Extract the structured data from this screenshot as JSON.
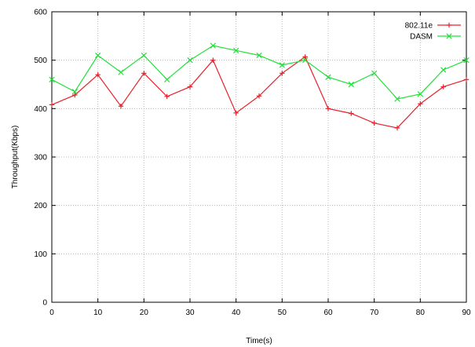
{
  "chart_data": {
    "type": "line",
    "title": "",
    "xlabel": "Time(s)",
    "ylabel": "Throughput(Kbps)",
    "xlim": [
      0,
      90
    ],
    "ylim": [
      0,
      600
    ],
    "xticks": [
      0,
      10,
      20,
      30,
      40,
      50,
      60,
      70,
      80,
      90
    ],
    "yticks": [
      0,
      100,
      200,
      300,
      400,
      500,
      600
    ],
    "xtick_labels": [
      "0",
      "10",
      "20",
      "30",
      "40",
      "50",
      "60",
      "70",
      "80",
      "90"
    ],
    "ytick_labels": [
      "0",
      "100",
      "200",
      "300",
      "400",
      "500",
      "600"
    ],
    "grid": true,
    "legend_position": "top-right",
    "x": [
      0,
      5,
      10,
      15,
      20,
      25,
      30,
      35,
      40,
      45,
      50,
      55,
      60,
      65,
      70,
      75,
      80,
      85,
      90
    ],
    "series": [
      {
        "name": "802.11e",
        "color": "#e8212b",
        "marker": "plus",
        "values": [
          408,
          428,
          470,
          405,
          473,
          425,
          445,
          500,
          391,
          426,
          473,
          507,
          400,
          390,
          370,
          360,
          410,
          445,
          460
        ]
      },
      {
        "name": "DASM",
        "color": "#22e03a",
        "marker": "cross",
        "values": [
          460,
          435,
          510,
          475,
          510,
          460,
          500,
          530,
          520,
          510,
          490,
          500,
          465,
          450,
          473,
          420,
          430,
          480,
          500
        ]
      }
    ]
  }
}
